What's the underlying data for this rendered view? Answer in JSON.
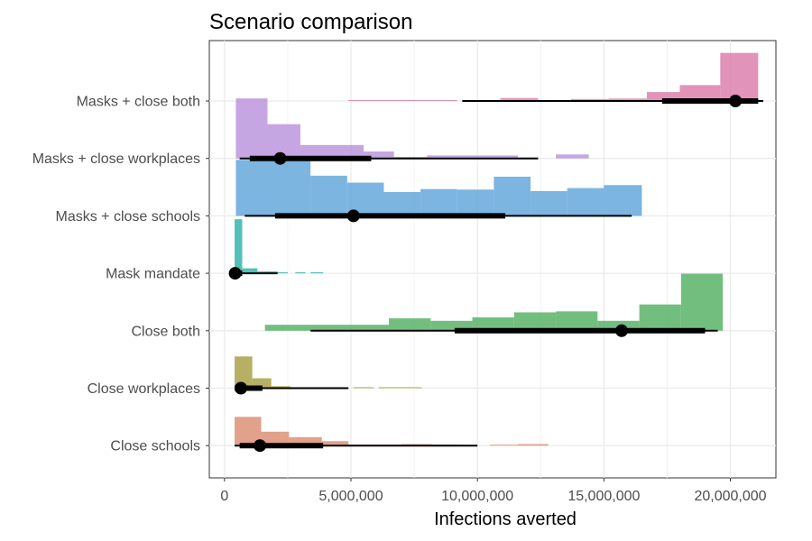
{
  "chart_data": {
    "type": "histogram-interval",
    "title": "Scenario comparison",
    "xlabel": "Infections averted",
    "ylabel": "",
    "xlim": [
      -600000,
      21800000
    ],
    "x_ticks": [
      0,
      5000000,
      10000000,
      15000000,
      20000000
    ],
    "x_tick_labels": [
      "0",
      "5,000,000",
      "10,000,000",
      "15,000,000",
      "20,000,000"
    ],
    "grid": true,
    "legend": "none",
    "series": [
      {
        "name": "Close schools",
        "color": "#d9896d",
        "bins": [
          [
            400000,
            1450000,
            0.58
          ],
          [
            1450000,
            2550000,
            0.28
          ],
          [
            2550000,
            3850000,
            0.17
          ],
          [
            3850000,
            4900000,
            0.09
          ],
          [
            4900000,
            7000000,
            0.02
          ],
          [
            7000000,
            8200000,
            0.03
          ],
          [
            8200000,
            9400000,
            0.01
          ],
          [
            10500000,
            11600000,
            0.01
          ],
          [
            11600000,
            12800000,
            0.03
          ]
        ],
        "point": 1400000,
        "thick": [
          600000,
          3900000
        ],
        "thin": [
          400000,
          10000000
        ]
      },
      {
        "name": "Close workplaces",
        "color": "#a59c3d",
        "bins": [
          [
            400000,
            1100000,
            0.64
          ],
          [
            1100000,
            1850000,
            0.2
          ],
          [
            1850000,
            2600000,
            0.04
          ],
          [
            2600000,
            3300000,
            0.02
          ],
          [
            3300000,
            4800000,
            0.02
          ],
          [
            5100000,
            5900000,
            0.02
          ],
          [
            6100000,
            7800000,
            0.02
          ]
        ],
        "point": 650000,
        "thick": [
          400000,
          1500000
        ],
        "thin": [
          400000,
          4900000
        ]
      },
      {
        "name": "Close both",
        "color": "#4fae5f",
        "bins": [
          [
            1600000,
            3450000,
            0.12
          ],
          [
            3450000,
            6500000,
            0.12
          ],
          [
            6500000,
            8150000,
            0.25
          ],
          [
            8150000,
            9800000,
            0.2
          ],
          [
            9800000,
            11450000,
            0.27
          ],
          [
            11450000,
            13100000,
            0.37
          ],
          [
            13100000,
            14750000,
            0.39
          ],
          [
            14750000,
            16400000,
            0.2
          ],
          [
            16400000,
            18050000,
            0.53
          ],
          [
            18050000,
            19700000,
            1.15
          ]
        ],
        "point": 15700000,
        "thick": [
          9100000,
          19000000
        ],
        "thin": [
          3400000,
          19500000
        ]
      },
      {
        "name": "Mask mandate",
        "color": "#27b0a5",
        "bins": [
          [
            400000,
            700000,
            1.09
          ],
          [
            700000,
            1300000,
            0.1
          ],
          [
            1300000,
            2100000,
            0.04
          ],
          [
            2100000,
            2500000,
            0.02
          ],
          [
            2800000,
            3200000,
            0.02
          ],
          [
            3400000,
            3900000,
            0.02
          ]
        ],
        "point": 420000,
        "thick": [
          300000,
          700000
        ],
        "thin": [
          300000,
          2100000
        ]
      },
      {
        "name": "Masks + close schools",
        "color": "#5aa2d8",
        "bins": [
          [
            450000,
            3400000,
            1.13
          ],
          [
            3400000,
            4850000,
            0.81
          ],
          [
            4850000,
            6300000,
            0.67
          ],
          [
            6300000,
            7750000,
            0.48
          ],
          [
            7750000,
            9200000,
            0.54
          ],
          [
            9200000,
            10650000,
            0.53
          ],
          [
            10650000,
            12100000,
            0.79
          ],
          [
            12100000,
            13550000,
            0.5
          ],
          [
            13550000,
            15000000,
            0.56
          ],
          [
            15000000,
            16500000,
            0.62
          ]
        ],
        "point": 5100000,
        "thick": [
          2000000,
          11100000
        ],
        "thin": [
          800000,
          16100000
        ]
      },
      {
        "name": "Masks + close workplaces",
        "color": "#b88fdc",
        "bins": [
          [
            450000,
            1700000,
            1.21
          ],
          [
            1700000,
            3000000,
            0.69
          ],
          [
            3000000,
            5500000,
            0.27
          ],
          [
            5500000,
            6700000,
            0.14
          ],
          [
            6700000,
            8000000,
            0.03
          ],
          [
            8000000,
            11600000,
            0.06
          ],
          [
            11600000,
            12400000,
            0.02
          ],
          [
            13100000,
            14400000,
            0.08
          ]
        ],
        "point": 2200000,
        "thick": [
          1000000,
          5800000
        ],
        "thin": [
          600000,
          12400000
        ]
      },
      {
        "name": "Masks + close both",
        "color": "#da78a8",
        "bins": [
          [
            4900000,
            6300000,
            0.02
          ],
          [
            6300000,
            7700000,
            0.02
          ],
          [
            7700000,
            9200000,
            0.01
          ],
          [
            10900000,
            12400000,
            0.06
          ],
          [
            12400000,
            13700000,
            0.02
          ],
          [
            13700000,
            15200000,
            0.04
          ],
          [
            15200000,
            16700000,
            0.05
          ],
          [
            16700000,
            18000000,
            0.18
          ],
          [
            18000000,
            19600000,
            0.32
          ],
          [
            19600000,
            21100000,
            0.97
          ]
        ],
        "point": 20200000,
        "thick": [
          17300000,
          21100000
        ],
        "thin": [
          9400000,
          21300000
        ]
      }
    ]
  }
}
